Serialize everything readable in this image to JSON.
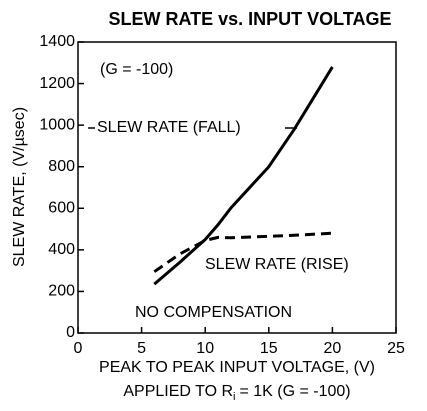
{
  "chart_data": {
    "type": "line",
    "title": "SLEW RATE vs. INPUT VOLTAGE",
    "x_label": "PEAK TO PEAK INPUT VOLTAGE, (V)",
    "x_label_2": "APPLIED TO R",
    "x_label_2_sub": "i",
    "x_label_2_end": "= 1K (G = -100)",
    "y_label": "SLEW RATE, (V/µsec)",
    "annotations": [
      "(G = -100)",
      "SLEW RATE (FALL)",
      "SLEW RATE (RISE)",
      "NO COMPENSATION"
    ],
    "xlim": [
      0,
      25
    ],
    "xticks": [
      0,
      5,
      10,
      15,
      20,
      25
    ],
    "ylim": [
      0,
      1400
    ],
    "yticks": [
      0,
      200,
      400,
      600,
      800,
      1000,
      1200,
      1400
    ],
    "x": [
      6,
      8,
      10,
      11,
      12,
      15,
      17,
      20
    ],
    "series": [
      {
        "name": "SLEW RATE (FALL)",
        "color": "#000000",
        "dashed": false,
        "values": [
          235,
          340,
          450,
          520,
          600,
          800,
          980,
          1280
        ]
      },
      {
        "name": "SLEW RATE (RISE)",
        "color": "#000000",
        "dashed": true,
        "values": [
          295,
          380,
          445,
          460,
          458,
          465,
          470,
          480
        ]
      }
    ]
  }
}
